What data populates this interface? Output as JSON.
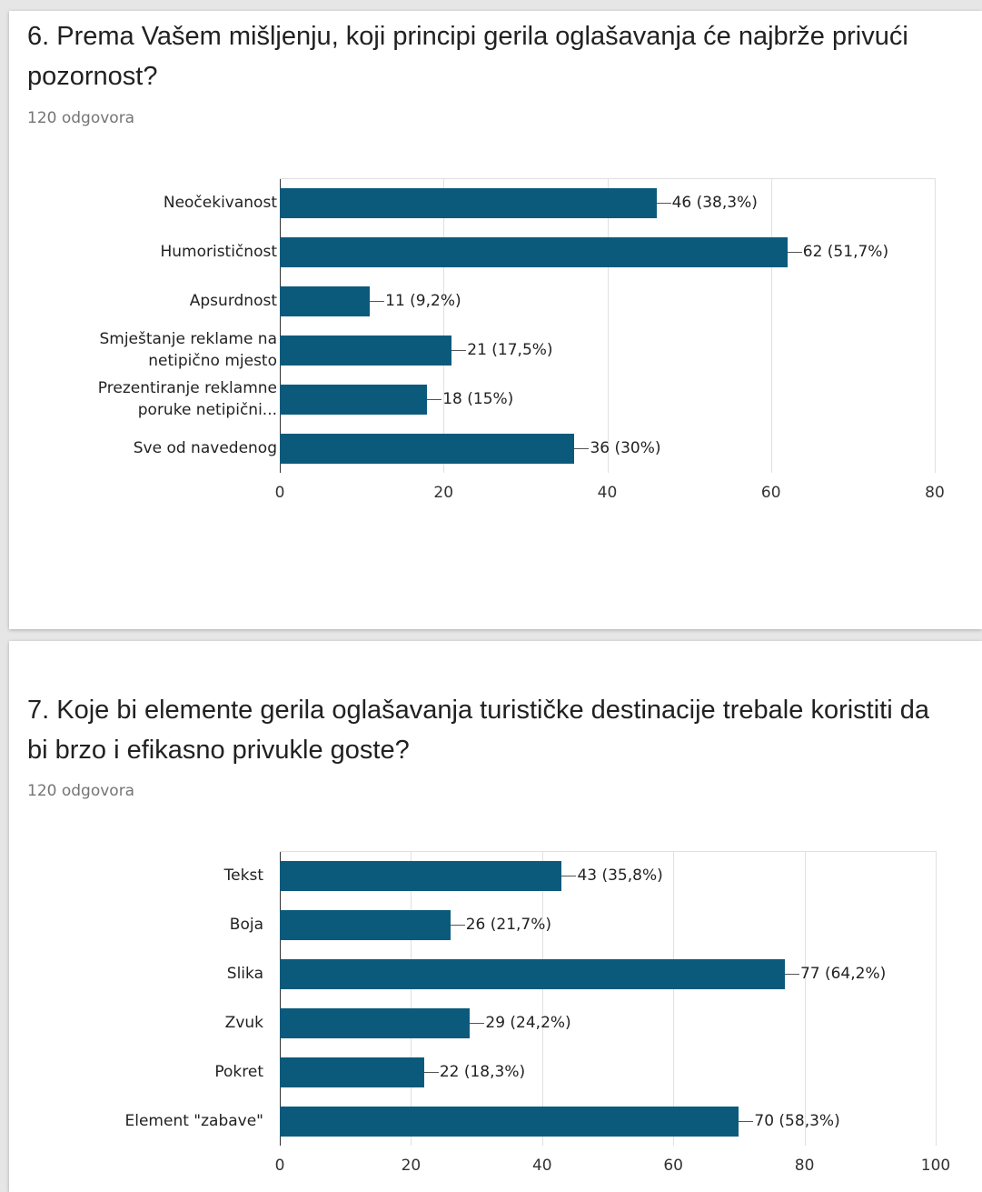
{
  "chart_data": [
    {
      "type": "bar",
      "orientation": "horizontal",
      "title": "6. Prema Vašem mišljenju, koji principi gerila oglašavanja će najbrže privući pozornost?",
      "subtitle": "120 odgovora",
      "categories": [
        "Neočekivanost",
        "Humorističnost",
        "Apsurdnost",
        "Smještanje reklame na netipično mjesto",
        "Prezentiranje reklamne poruke netipični...",
        "Sve od navedenog"
      ],
      "values": [
        46,
        62,
        11,
        21,
        18,
        36
      ],
      "value_labels": [
        "46 (38,3%)",
        "62 (51,7%)",
        "11 (9,2%)",
        "21 (17,5%)",
        "18 (15%)",
        "36 (30%)"
      ],
      "color": "#0b5a7c",
      "xlim": [
        0,
        80
      ],
      "xticks": [
        0,
        20,
        40,
        60,
        80
      ],
      "grid": true
    },
    {
      "type": "bar",
      "orientation": "horizontal",
      "title": "7. Koje bi elemente gerila oglašavanja turističke destinacije trebale koristiti da bi brzo i efikasno privukle goste?",
      "subtitle": "120 odgovora",
      "categories": [
        "Tekst",
        "Boja",
        "Slika",
        "Zvuk",
        "Pokret",
        "Element \"zabave\""
      ],
      "values": [
        43,
        26,
        77,
        29,
        22,
        70
      ],
      "value_labels": [
        "43 (35,8%)",
        "26 (21,7%)",
        "77 (64,2%)",
        "29 (24,2%)",
        "22 (18,3%)",
        "70 (58,3%)"
      ],
      "color": "#0b5a7c",
      "xlim": [
        0,
        100
      ],
      "xticks": [
        0,
        20,
        40,
        60,
        80,
        100
      ],
      "grid": true
    }
  ]
}
